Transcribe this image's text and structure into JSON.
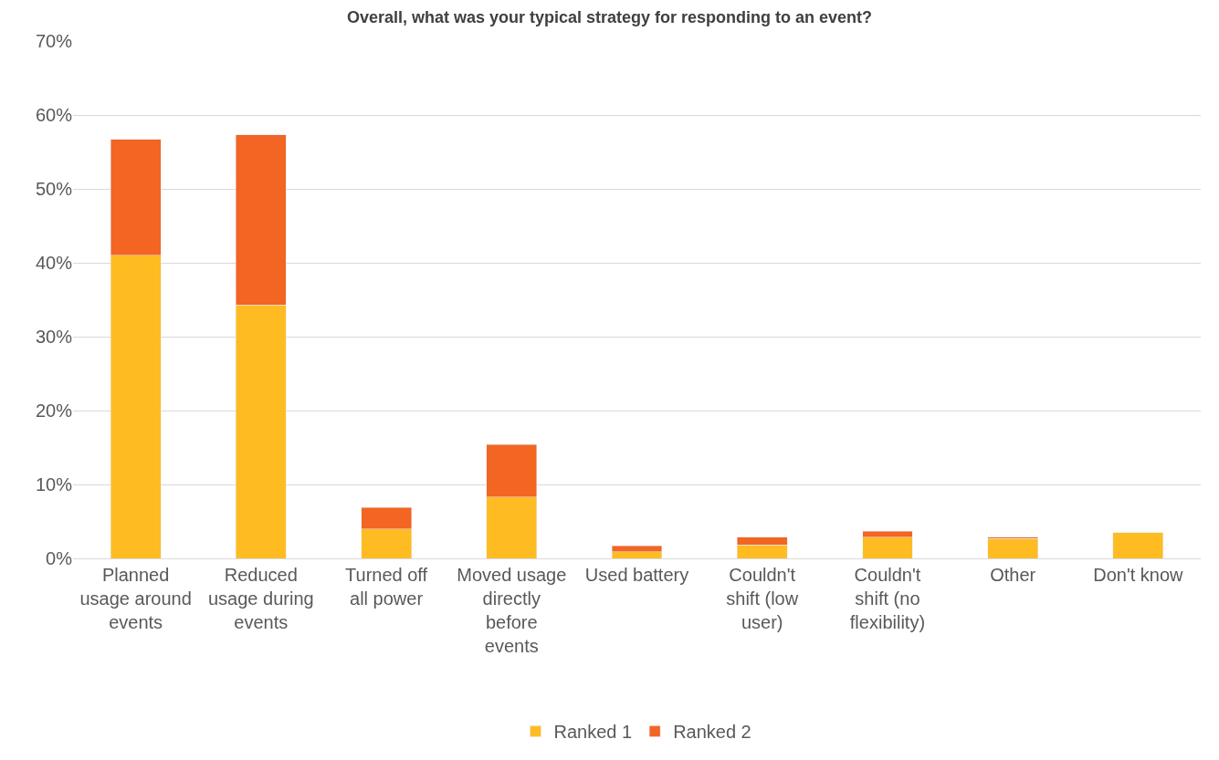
{
  "chart_data": {
    "type": "bar",
    "stacked": true,
    "title": "Overall, what was your typical strategy for responding to an event?",
    "categories": [
      "Planned usage around events",
      "Reduced usage during events",
      "Turned off all power",
      "Moved usage directly before events",
      "Used battery",
      "Couldn't shift (low user)",
      "Couldn't shift (no flexibility)",
      "Other",
      "Don't know"
    ],
    "series": [
      {
        "name": "Ranked 1",
        "color": "#febc22",
        "values": [
          41.0,
          34.3,
          4.0,
          8.3,
          0.9,
          1.8,
          2.9,
          2.7,
          3.5
        ]
      },
      {
        "name": "Ranked 2",
        "color": "#f26522",
        "values": [
          15.7,
          23.0,
          2.9,
          7.1,
          0.8,
          1.1,
          0.8,
          0.2,
          null
        ]
      }
    ],
    "ylim": [
      0,
      70
    ],
    "yticks": [
      {
        "value": 0,
        "label": "0%"
      },
      {
        "value": 10,
        "label": "10%"
      },
      {
        "value": 20,
        "label": "20%"
      },
      {
        "value": 30,
        "label": "30%"
      },
      {
        "value": 40,
        "label": "40%"
      },
      {
        "value": 50,
        "label": "50%"
      },
      {
        "value": 60,
        "label": "60%"
      },
      {
        "value": 70,
        "label": "70%"
      }
    ],
    "grid": "y",
    "legend": "bottom"
  }
}
